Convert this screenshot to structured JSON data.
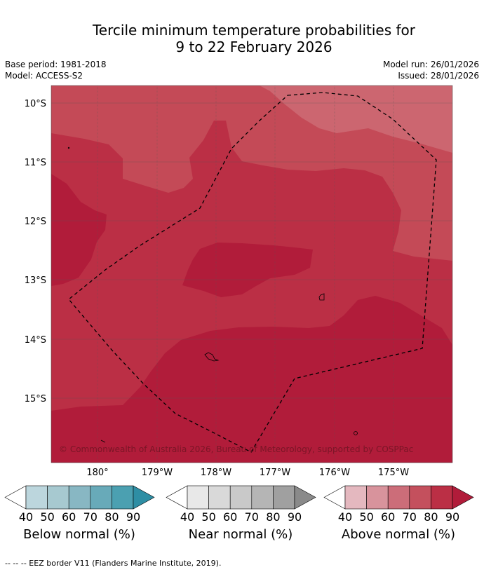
{
  "title": {
    "line1": "Tercile minimum temperature probabilities for",
    "line2": "9 to 22 February 2026"
  },
  "meta": {
    "base_period": "Base period: 1981-2018",
    "model": "Model: ACCESS-S2",
    "model_run": "Model run: 26/01/2026",
    "issued": "Issued: 28/01/2026"
  },
  "map": {
    "lat_labels": [
      "10°S",
      "11°S",
      "12°S",
      "13°S",
      "14°S",
      "15°S"
    ],
    "lon_labels": [
      "180°",
      "179°W",
      "178°W",
      "177°W",
      "176°W",
      "175°W"
    ],
    "copyright": "© Commonwealth of Australia 2026, Bureau of Meteorology, supported by COSPPac",
    "colors": {
      "above_60": "#cc6670",
      "above_70": "#c44a57",
      "above_80": "#bb2f45",
      "above_90": "#b11c3a"
    }
  },
  "legends": [
    {
      "name": "below",
      "title": "Below normal (%)",
      "ticks": [
        "40",
        "50",
        "60",
        "70",
        "80",
        "90"
      ],
      "colors": [
        "#bcd6dd",
        "#a7c9d0",
        "#88b7c3",
        "#68aab9",
        "#4ba0b1",
        "#2e8ea4"
      ]
    },
    {
      "name": "near",
      "title": "Near normal (%)",
      "ticks": [
        "40",
        "50",
        "60",
        "70",
        "80",
        "90"
      ],
      "colors": [
        "#e8e8e8",
        "#d9d9d9",
        "#c9c9c9",
        "#b5b5b5",
        "#a0a0a0",
        "#8a8a8a"
      ]
    },
    {
      "name": "above",
      "title": "Above normal (%)",
      "ticks": [
        "40",
        "50",
        "60",
        "70",
        "80",
        "90"
      ],
      "colors": [
        "#e4b8bf",
        "#d8939c",
        "#cc6d79",
        "#c4505d",
        "#bb2f45",
        "#b11c3a"
      ]
    }
  ],
  "footnote": "--  --  -- EEZ border V11 (Flanders Marine Institute, 2019)."
}
